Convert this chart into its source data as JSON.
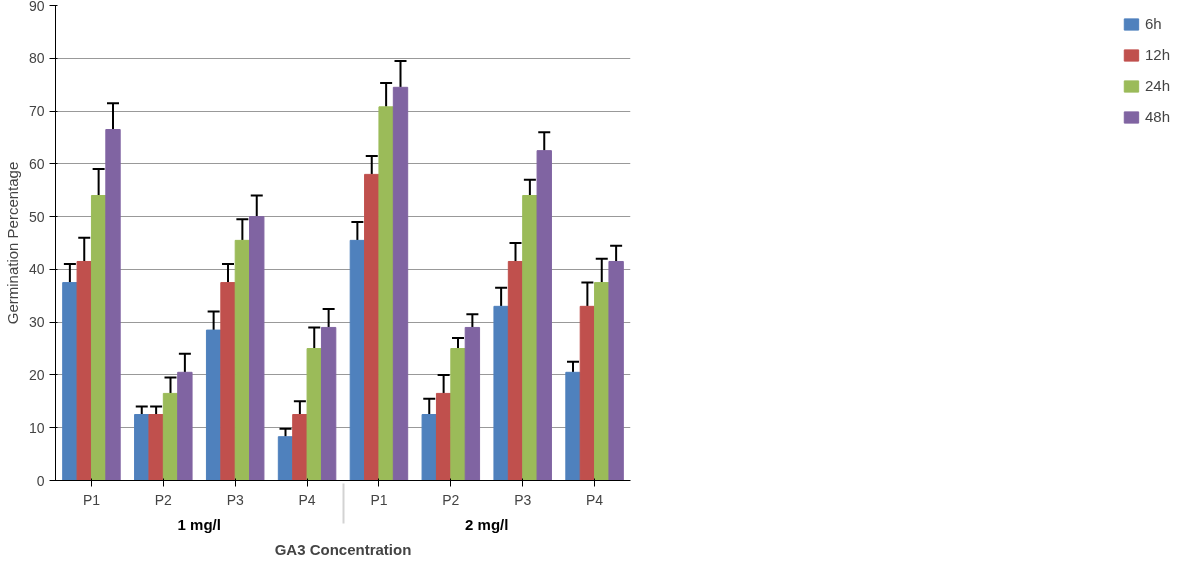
{
  "chart_data": {
    "type": "bar",
    "xlabel": "GA3 Concentration",
    "ylabel": "Germination Percentage",
    "categories": [
      "P1",
      "P2",
      "P3",
      "P4",
      "P1",
      "P2",
      "P3",
      "P4"
    ],
    "annotations": [
      "1 mg/l",
      "2 mg/l"
    ],
    "series": [
      {
        "name": "6h",
        "color": "#4f81bd",
        "values": [
          37.5,
          12.5,
          28.5,
          8.3,
          45.5,
          12.5,
          33,
          20.5
        ],
        "errors": [
          3.5,
          1.5,
          3.5,
          1.5,
          3.5,
          3,
          3.5,
          2
        ]
      },
      {
        "name": "12h",
        "color": "#c0504d",
        "values": [
          41.5,
          12.5,
          37.5,
          12.5,
          58,
          16.5,
          41.5,
          33
        ],
        "errors": [
          4.5,
          1.5,
          3.5,
          2.5,
          3.5,
          3.5,
          3.5,
          4.5
        ]
      },
      {
        "name": "24h",
        "color": "#9bbb59",
        "values": [
          54,
          16.5,
          45.5,
          25,
          70.8,
          25,
          54,
          37.5
        ],
        "errors": [
          5,
          3,
          4,
          4,
          4.5,
          2,
          3,
          4.5
        ]
      },
      {
        "name": "48h",
        "color": "#8064a2",
        "values": [
          66.5,
          20.5,
          50,
          29,
          74.5,
          29,
          62.5,
          41.5
        ],
        "errors": [
          5,
          3.5,
          4,
          3.5,
          5,
          2.5,
          3.5,
          3
        ]
      }
    ],
    "ylim": [
      0,
      90
    ],
    "yticks": [
      0,
      10,
      20,
      30,
      40,
      50,
      60,
      70,
      80,
      90
    ],
    "grid": "y",
    "legend": "right"
  }
}
